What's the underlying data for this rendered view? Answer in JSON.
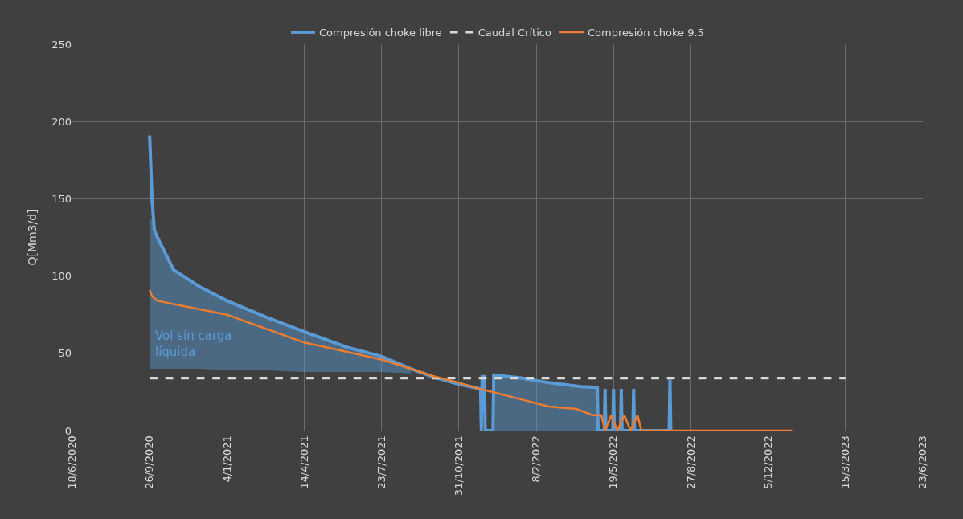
{
  "chart_data": {
    "type": "line",
    "ylabel": "Q[Mm3/d]",
    "xlim": [
      "2020-06-18",
      "2023-06-23"
    ],
    "xticks": [
      {
        "value": "2020-06-18",
        "label": "18/6/2020"
      },
      {
        "value": "2020-09-26",
        "label": "26/9/2020"
      },
      {
        "value": "2021-01-04",
        "label": "4/1/2021"
      },
      {
        "value": "2021-04-14",
        "label": "14/4/2021"
      },
      {
        "value": "2021-07-23",
        "label": "23/7/2021"
      },
      {
        "value": "2021-10-31",
        "label": "31/10/2021"
      },
      {
        "value": "2022-02-08",
        "label": "8/2/2022"
      },
      {
        "value": "2022-05-19",
        "label": "19/5/2022"
      },
      {
        "value": "2022-08-27",
        "label": "27/8/2022"
      },
      {
        "value": "2022-12-05",
        "label": "5/12/2022"
      },
      {
        "value": "2023-03-15",
        "label": "15/3/2023"
      },
      {
        "value": "2023-06-23",
        "label": "23/6/2023"
      }
    ],
    "ylim": [
      0,
      250
    ],
    "yticks": [
      0,
      50,
      100,
      150,
      200,
      250
    ],
    "grid": true,
    "legend": "top",
    "marker": "none",
    "series": [
      {
        "name": "Compresión choke libre",
        "color": "#5b9bd5",
        "line_style": "solid",
        "x": [
          "2020-09-26",
          "2020-09-29",
          "2020-10-02",
          "2020-10-06",
          "2020-10-27",
          "2020-11-30",
          "2021-01-04",
          "2021-02-26",
          "2021-04-14",
          "2021-06-08",
          "2021-07-23",
          "2021-08-30",
          "2021-09-26",
          "2021-10-31",
          "2021-11-28",
          "2021-11-29",
          "2021-11-30",
          "2021-12-03",
          "2021-12-04",
          "2021-12-14",
          "2021-12-15",
          "2022-01-20",
          "2022-02-24",
          "2022-04-07",
          "2022-04-28",
          "2022-04-29",
          "2022-05-07",
          "2022-05-08",
          "2022-05-09",
          "2022-05-18",
          "2022-05-19",
          "2022-05-20",
          "2022-05-28",
          "2022-05-29",
          "2022-05-30",
          "2022-06-13",
          "2022-06-14",
          "2022-06-15",
          "2022-07-30",
          "2022-07-31",
          "2022-08-01"
        ],
        "values": [
          191,
          150,
          130,
          125,
          104,
          93,
          84,
          73,
          64,
          54,
          48,
          40,
          35,
          30,
          27,
          0,
          35,
          35,
          0,
          0,
          36,
          34,
          31,
          28.5,
          28,
          0,
          0,
          27,
          0,
          0,
          27,
          0,
          0,
          27,
          0,
          0,
          27,
          0,
          0,
          33,
          0
        ],
        "lower": [
          40,
          40,
          40,
          40,
          40,
          40,
          39,
          39,
          38,
          38,
          38,
          37,
          null,
          null,
          null,
          null,
          null,
          null,
          null,
          null,
          0,
          0,
          0,
          0,
          0,
          null,
          null,
          null,
          null,
          null,
          null,
          null,
          null,
          null,
          null,
          null,
          null,
          null,
          null,
          null,
          null
        ],
        "upper": [
          137,
          137,
          130,
          125,
          104,
          93,
          84,
          73,
          64,
          54,
          48,
          40,
          null,
          null,
          null,
          null,
          null,
          null,
          null,
          null,
          36,
          34,
          31,
          28.5,
          28,
          null,
          null,
          null,
          null,
          null,
          null,
          null,
          null,
          null,
          null,
          null,
          null,
          null,
          null,
          null,
          null
        ]
      },
      {
        "name": "Caudal Crítico",
        "color": "#d9d9d9",
        "line_style": "dashed",
        "x": [
          "2020-09-26",
          "2023-03-15"
        ],
        "values": [
          34,
          34
        ]
      },
      {
        "name": "Compresión choke 9.5",
        "color": "#ed7d31",
        "line_style": "solid",
        "x": [
          "2020-09-26",
          "2020-09-29",
          "2020-10-06",
          "2021-01-04",
          "2021-04-14",
          "2021-07-23",
          "2021-08-30",
          "2021-09-26",
          "2021-10-31",
          "2021-11-24",
          "2022-01-14",
          "2022-02-24",
          "2022-04-01",
          "2022-04-22",
          "2022-05-03",
          "2022-05-08",
          "2022-05-16",
          "2022-05-24",
          "2022-06-02",
          "2022-06-10",
          "2022-06-19",
          "2022-06-24",
          "2023-01-05"
        ],
        "values": [
          91,
          87,
          84,
          75,
          57,
          46,
          40,
          35.5,
          31,
          27.4,
          21,
          15.6,
          14,
          10,
          10,
          0,
          10,
          0,
          10,
          0,
          10,
          0,
          0
        ]
      }
    ],
    "annotations": [
      {
        "text": "Vol sin carga\nlíquida",
        "x": "2020-10-01",
        "y": 45
      }
    ]
  }
}
